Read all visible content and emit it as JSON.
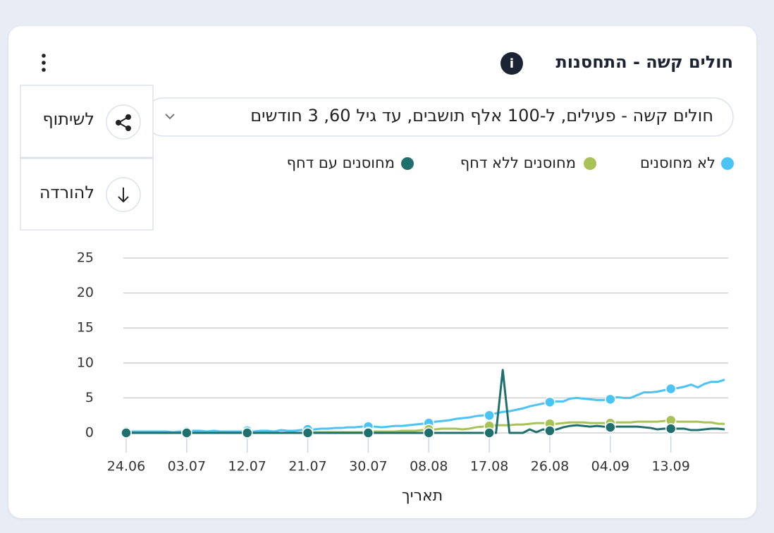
{
  "menu": {
    "items": [
      "לשיתוף",
      "להורדה"
    ]
  },
  "dropdown": {
    "label": "חולים קשה - פעילים, ל-100 אלף תושבים, עד גיל 60, 3 חודשים"
  },
  "chart_data": {
    "type": "line",
    "title": "חולים קשה - התחסנות",
    "xlabel": "תאריך",
    "categories": [
      "24.06",
      null,
      null,
      null,
      null,
      null,
      null,
      null,
      null,
      "03.07",
      null,
      null,
      null,
      null,
      null,
      null,
      null,
      null,
      "12.07",
      null,
      null,
      null,
      null,
      null,
      null,
      null,
      null,
      "21.07",
      null,
      null,
      null,
      null,
      null,
      null,
      null,
      null,
      "30.07",
      null,
      null,
      null,
      null,
      null,
      null,
      null,
      null,
      "08.08",
      null,
      null,
      null,
      null,
      null,
      null,
      null,
      null,
      "17.08",
      null,
      null,
      null,
      null,
      null,
      null,
      null,
      null,
      "26.08",
      null,
      null,
      null,
      null,
      null,
      null,
      null,
      null,
      "04.09",
      null,
      null,
      null,
      null,
      null,
      null,
      null,
      null,
      "13.09",
      null,
      null,
      null,
      null,
      null,
      null,
      null,
      null
    ],
    "ylim": [
      0,
      25
    ],
    "yticks": [
      0,
      5,
      10,
      15,
      20,
      25
    ],
    "grid": true,
    "series": [
      {
        "name": "לא מחוסנים",
        "color": "#4cc3f5",
        "values": [
          0.2,
          0.2,
          0.2,
          0.2,
          0.2,
          0.2,
          0.2,
          0.1,
          0.2,
          0.2,
          0.3,
          0.3,
          0.2,
          0.3,
          0.2,
          0.2,
          0.2,
          0.2,
          0.3,
          0.2,
          0.3,
          0.3,
          0.2,
          0.4,
          0.3,
          0.3,
          0.4,
          0.5,
          0.5,
          0.6,
          0.6,
          0.7,
          0.7,
          0.8,
          0.8,
          0.9,
          0.9,
          0.9,
          0.8,
          0.9,
          1.0,
          1.0,
          1.1,
          1.2,
          1.3,
          1.4,
          1.6,
          1.7,
          1.8,
          2.0,
          2.1,
          2.2,
          2.4,
          2.5,
          2.5,
          2.8,
          3.0,
          3.1,
          3.3,
          3.5,
          3.8,
          4.0,
          4.2,
          4.4,
          4.5,
          4.5,
          4.9,
          5.0,
          4.9,
          4.8,
          4.7,
          4.7,
          4.8,
          5.1,
          5.0,
          5.0,
          5.4,
          5.8,
          5.8,
          5.9,
          6.1,
          6.3,
          6.4,
          6.6,
          6.9,
          6.5,
          7.0,
          7.3,
          7.3,
          7.6
        ]
      },
      {
        "name": "מחוסנים ללא דחף",
        "color": "#a8c256",
        "values": [
          0,
          0,
          0,
          0,
          0,
          0,
          0,
          0,
          0,
          0,
          0,
          0,
          0,
          0,
          0,
          0,
          0,
          0,
          0,
          0,
          0,
          0,
          0,
          0,
          0,
          0,
          0,
          0,
          0.1,
          0.1,
          0.1,
          0.1,
          0.1,
          0.1,
          0.1,
          0.1,
          0.1,
          0.2,
          0.2,
          0.2,
          0.2,
          0.3,
          0.3,
          0.3,
          0.4,
          0.5,
          0.5,
          0.6,
          0.6,
          0.6,
          0.5,
          0.6,
          0.8,
          0.9,
          1.0,
          1.1,
          1.1,
          1.1,
          1.2,
          1.2,
          1.3,
          1.4,
          1.4,
          1.3,
          1.3,
          1.4,
          1.5,
          1.5,
          1.5,
          1.4,
          1.4,
          1.4,
          1.4,
          1.5,
          1.5,
          1.5,
          1.6,
          1.6,
          1.6,
          1.6,
          1.7,
          1.8,
          1.6,
          1.6,
          1.6,
          1.6,
          1.5,
          1.5,
          1.3,
          1.3
        ]
      },
      {
        "name": "מחוסנים עם דחף",
        "color": "#1f6f6c",
        "values": [
          0,
          0,
          0,
          0,
          0,
          0,
          0,
          0,
          0,
          0,
          0,
          0,
          0,
          0,
          0,
          0,
          0,
          0,
          0,
          0,
          0,
          0,
          0,
          0,
          0,
          0,
          0,
          0,
          0,
          0,
          0,
          0,
          0,
          0,
          0,
          0,
          0,
          0,
          0,
          0,
          0,
          0,
          0,
          0,
          0,
          0,
          0,
          0,
          0,
          0,
          0,
          0,
          0,
          0,
          0,
          0,
          9.0,
          0,
          0,
          0,
          0.5,
          0.1,
          0.5,
          0.3,
          0.5,
          0.8,
          1.0,
          1.1,
          1.0,
          0.9,
          1.0,
          0.9,
          0.8,
          0.9,
          0.9,
          0.9,
          0.9,
          0.8,
          0.7,
          0.5,
          0.6,
          0.6,
          0.6,
          0.6,
          0.4,
          0.4,
          0.5,
          0.6,
          0.6,
          0.5
        ]
      }
    ]
  }
}
